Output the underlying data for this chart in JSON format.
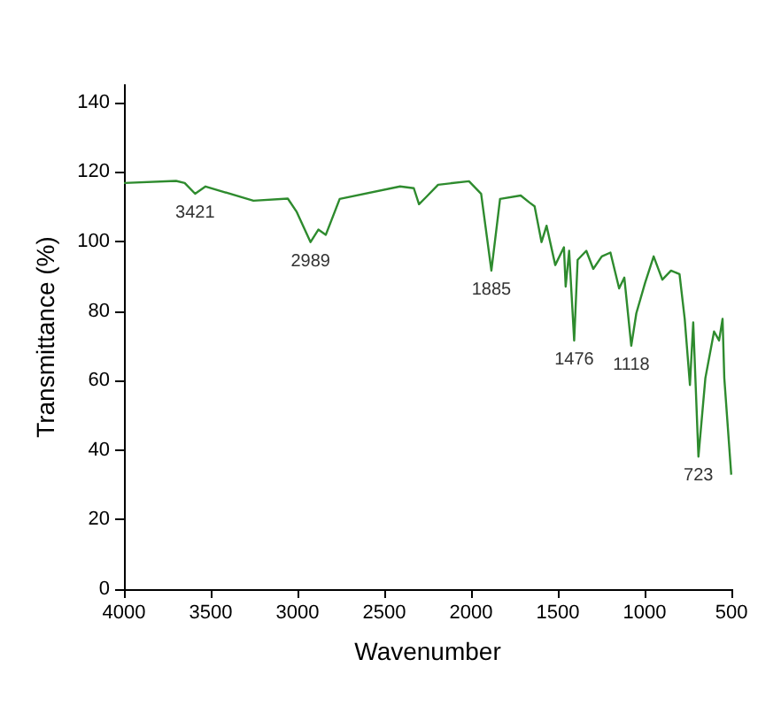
{
  "chart_data": {
    "type": "line",
    "xlabel": "Wavenumber",
    "ylabel": "Transmittance (%)",
    "x": [
      4000,
      3700,
      3650,
      3590,
      3530,
      3254,
      3056,
      3006,
      2925,
      2880,
      2837,
      2757,
      2409,
      2330,
      2300,
      2260,
      2190,
      2012,
      1942,
      1883,
      1833,
      1714,
      1664,
      1634,
      1594,
      1565,
      1515,
      1465,
      1455,
      1435,
      1406,
      1386,
      1336,
      1296,
      1247,
      1197,
      1147,
      1117,
      1077,
      1048,
      998,
      948,
      898,
      848,
      799,
      769,
      739,
      720,
      690,
      650,
      600,
      571,
      551,
      541,
      501
    ],
    "series": [
      {
        "color": "#2e8b2e",
        "values": [
          116.8,
          117.4,
          116.8,
          113.7,
          115.8,
          111.7,
          112.3,
          108.6,
          99.8,
          103.4,
          101.9,
          112.2,
          115.8,
          115.3,
          110.7,
          112.7,
          116.3,
          117.3,
          113.7,
          91.6,
          112.2,
          113.2,
          111.2,
          110.1,
          99.8,
          104.5,
          93.2,
          98.3,
          87,
          97.3,
          71.5,
          94.7,
          97.3,
          92.1,
          95.7,
          96.8,
          86.5,
          89.6,
          70,
          79.3,
          88,
          95.7,
          89,
          91.6,
          90.6,
          77.7,
          58.7,
          76.7,
          38.1,
          60.7,
          74.1,
          71.5,
          77.7,
          60.7,
          32.9
        ]
      }
    ],
    "xlim": [
      4000,
      500
    ],
    "xticks": [
      4000,
      3500,
      3000,
      2500,
      2000,
      1500,
      1000,
      500
    ],
    "ylim": [
      0,
      145
    ],
    "yticks": [
      0,
      20,
      40,
      60,
      80,
      100,
      120,
      140
    ],
    "grid": false,
    "marker": "none",
    "line_style": "solid",
    "annotations": [
      {
        "text": "3421",
        "x": 3590,
        "y": 113.7
      },
      {
        "text": "2989",
        "x": 2925,
        "y": 99.8
      },
      {
        "text": "1885",
        "x": 1883,
        "y": 91.6
      },
      {
        "text": "1476",
        "x": 1406,
        "y": 71.5
      },
      {
        "text": "1118",
        "x": 1077,
        "y": 70
      },
      {
        "text": "723",
        "x": 690,
        "y": 38.1
      }
    ]
  }
}
